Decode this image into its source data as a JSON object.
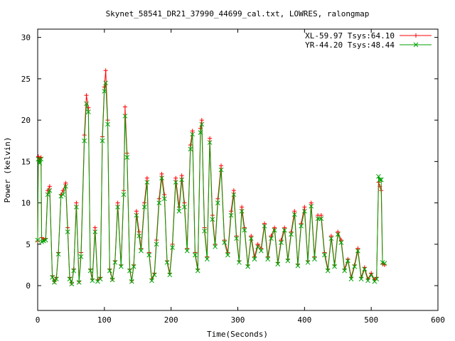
{
  "chart_data": {
    "type": "line",
    "title": "Skynet_58541_DR21_37990_44699_cal.txt, LOWRES, ralongmap",
    "xlabel": "Time(Seconds)",
    "ylabel": "Power (kelvin)",
    "xlim": [
      0,
      600
    ],
    "ylim": [
      -3,
      31
    ],
    "xticks": [
      0,
      100,
      200,
      300,
      400,
      500,
      600
    ],
    "yticks": [
      0,
      5,
      10,
      15,
      20,
      25,
      30
    ],
    "grid": false,
    "legend_position": "top-right",
    "series": [
      {
        "name": "XL-59.97 Tsys:64.10",
        "color": "#ff0000",
        "marker": "plus",
        "points": [
          [
            0,
            5.4
          ],
          [
            1,
            15.6
          ],
          [
            3,
            15.2
          ],
          [
            5,
            15.5
          ],
          [
            6,
            5.8
          ],
          [
            9,
            5.6
          ],
          [
            12,
            5.7
          ],
          [
            15,
            11.5
          ],
          [
            18,
            12.0
          ],
          [
            22,
            1.2
          ],
          [
            25,
            0.5
          ],
          [
            28,
            1.0
          ],
          [
            31,
            4.0
          ],
          [
            35,
            11.0
          ],
          [
            38,
            11.5
          ],
          [
            42,
            12.4
          ],
          [
            45,
            7.0
          ],
          [
            48,
            1.0
          ],
          [
            51,
            0.3
          ],
          [
            54,
            2.0
          ],
          [
            58,
            10.0
          ],
          [
            62,
            0.5
          ],
          [
            65,
            4.0
          ],
          [
            70,
            18.2
          ],
          [
            73,
            23.0
          ],
          [
            76,
            21.5
          ],
          [
            79,
            2.0
          ],
          [
            82,
            0.8
          ],
          [
            86,
            7.0
          ],
          [
            90,
            0.7
          ],
          [
            94,
            1.0
          ],
          [
            97,
            18.0
          ],
          [
            100,
            24.0
          ],
          [
            102,
            26.0
          ],
          [
            105,
            20.0
          ],
          [
            108,
            2.0
          ],
          [
            112,
            0.8
          ],
          [
            116,
            3.0
          ],
          [
            120,
            10.0
          ],
          [
            125,
            2.5
          ],
          [
            129,
            11.5
          ],
          [
            131,
            21.6
          ],
          [
            134,
            16.0
          ],
          [
            138,
            2.0
          ],
          [
            141,
            0.6
          ],
          [
            144,
            2.5
          ],
          [
            148,
            9.0
          ],
          [
            152,
            6.5
          ],
          [
            155,
            4.5
          ],
          [
            160,
            10.0
          ],
          [
            164,
            13.0
          ],
          [
            167,
            4.0
          ],
          [
            171,
            0.8
          ],
          [
            175,
            1.5
          ],
          [
            178,
            5.5
          ],
          [
            182,
            10.5
          ],
          [
            186,
            13.5
          ],
          [
            190,
            11.0
          ],
          [
            194,
            3.0
          ],
          [
            198,
            1.5
          ],
          [
            202,
            5.0
          ],
          [
            207,
            13.0
          ],
          [
            212,
            9.5
          ],
          [
            216,
            13.3
          ],
          [
            220,
            10.0
          ],
          [
            224,
            4.5
          ],
          [
            229,
            17.0
          ],
          [
            232,
            18.7
          ],
          [
            236,
            4.0
          ],
          [
            240,
            2.0
          ],
          [
            244,
            19.0
          ],
          [
            246,
            20.0
          ],
          [
            250,
            7.0
          ],
          [
            254,
            3.5
          ],
          [
            258,
            17.8
          ],
          [
            262,
            8.5
          ],
          [
            266,
            5.0
          ],
          [
            270,
            10.5
          ],
          [
            275,
            14.5
          ],
          [
            280,
            5.5
          ],
          [
            285,
            4.0
          ],
          [
            290,
            9.0
          ],
          [
            294,
            11.5
          ],
          [
            298,
            6.0
          ],
          [
            302,
            3.0
          ],
          [
            306,
            9.5
          ],
          [
            310,
            7.0
          ],
          [
            315,
            2.5
          ],
          [
            320,
            6.0
          ],
          [
            325,
            3.5
          ],
          [
            330,
            5.0
          ],
          [
            335,
            4.5
          ],
          [
            340,
            7.5
          ],
          [
            345,
            3.5
          ],
          [
            350,
            6.0
          ],
          [
            355,
            7.0
          ],
          [
            360,
            2.8
          ],
          [
            365,
            5.5
          ],
          [
            370,
            7.0
          ],
          [
            375,
            3.2
          ],
          [
            380,
            6.5
          ],
          [
            385,
            9.0
          ],
          [
            390,
            2.6
          ],
          [
            395,
            7.5
          ],
          [
            400,
            9.5
          ],
          [
            405,
            3.0
          ],
          [
            410,
            10.0
          ],
          [
            415,
            3.5
          ],
          [
            420,
            8.5
          ],
          [
            425,
            8.5
          ],
          [
            430,
            4.0
          ],
          [
            435,
            2.0
          ],
          [
            440,
            6.0
          ],
          [
            445,
            2.5
          ],
          [
            450,
            6.5
          ],
          [
            455,
            5.5
          ],
          [
            460,
            2.0
          ],
          [
            465,
            3.2
          ],
          [
            470,
            1.0
          ],
          [
            475,
            2.5
          ],
          [
            480,
            4.5
          ],
          [
            485,
            1.0
          ],
          [
            490,
            2.2
          ],
          [
            495,
            0.8
          ],
          [
            500,
            1.5
          ],
          [
            505,
            0.7
          ],
          [
            508,
            1.0
          ],
          [
            511,
            12.5
          ],
          [
            513,
            12.0
          ],
          [
            515,
            11.5
          ],
          [
            517,
            2.6
          ],
          [
            520,
            2.5
          ]
        ]
      },
      {
        "name": "YR-44.20 Tsys:48.44",
        "color": "#00a000",
        "marker": "x",
        "points": [
          [
            0,
            5.5
          ],
          [
            1,
            15.3
          ],
          [
            3,
            14.8
          ],
          [
            5,
            15.3
          ],
          [
            6,
            5.3
          ],
          [
            9,
            5.4
          ],
          [
            12,
            5.5
          ],
          [
            15,
            11.0
          ],
          [
            18,
            11.5
          ],
          [
            22,
            1.0
          ],
          [
            25,
            0.4
          ],
          [
            28,
            0.8
          ],
          [
            31,
            3.8
          ],
          [
            35,
            10.8
          ],
          [
            38,
            11.0
          ],
          [
            42,
            12.0
          ],
          [
            45,
            6.5
          ],
          [
            48,
            0.8
          ],
          [
            51,
            0.2
          ],
          [
            54,
            1.8
          ],
          [
            58,
            9.5
          ],
          [
            62,
            0.4
          ],
          [
            65,
            3.5
          ],
          [
            70,
            17.5
          ],
          [
            73,
            22.0
          ],
          [
            76,
            21.0
          ],
          [
            79,
            1.8
          ],
          [
            82,
            0.6
          ],
          [
            86,
            6.5
          ],
          [
            90,
            0.5
          ],
          [
            94,
            0.8
          ],
          [
            97,
            17.5
          ],
          [
            100,
            23.5
          ],
          [
            102,
            24.5
          ],
          [
            105,
            19.5
          ],
          [
            108,
            1.8
          ],
          [
            112,
            0.7
          ],
          [
            116,
            2.8
          ],
          [
            120,
            9.5
          ],
          [
            125,
            2.3
          ],
          [
            129,
            11.0
          ],
          [
            131,
            20.5
          ],
          [
            134,
            15.5
          ],
          [
            138,
            1.8
          ],
          [
            141,
            0.5
          ],
          [
            144,
            2.3
          ],
          [
            148,
            8.5
          ],
          [
            152,
            6.0
          ],
          [
            155,
            4.2
          ],
          [
            160,
            9.5
          ],
          [
            164,
            12.5
          ],
          [
            167,
            3.7
          ],
          [
            171,
            0.6
          ],
          [
            175,
            1.3
          ],
          [
            178,
            5.0
          ],
          [
            182,
            10.0
          ],
          [
            186,
            13.0
          ],
          [
            190,
            10.5
          ],
          [
            194,
            2.8
          ],
          [
            198,
            1.3
          ],
          [
            202,
            4.6
          ],
          [
            207,
            12.5
          ],
          [
            212,
            9.0
          ],
          [
            216,
            12.8
          ],
          [
            220,
            9.5
          ],
          [
            224,
            4.2
          ],
          [
            229,
            16.5
          ],
          [
            232,
            18.3
          ],
          [
            236,
            3.7
          ],
          [
            240,
            1.8
          ],
          [
            244,
            18.5
          ],
          [
            246,
            19.5
          ],
          [
            250,
            6.6
          ],
          [
            254,
            3.2
          ],
          [
            258,
            17.3
          ],
          [
            262,
            8.0
          ],
          [
            266,
            4.7
          ],
          [
            270,
            10.0
          ],
          [
            275,
            14.0
          ],
          [
            280,
            5.2
          ],
          [
            285,
            3.7
          ],
          [
            290,
            8.5
          ],
          [
            294,
            11.0
          ],
          [
            298,
            5.7
          ],
          [
            302,
            2.8
          ],
          [
            306,
            9.0
          ],
          [
            310,
            6.7
          ],
          [
            315,
            2.3
          ],
          [
            320,
            5.7
          ],
          [
            325,
            3.2
          ],
          [
            330,
            4.7
          ],
          [
            335,
            4.2
          ],
          [
            340,
            7.2
          ],
          [
            345,
            3.2
          ],
          [
            350,
            5.7
          ],
          [
            355,
            6.7
          ],
          [
            360,
            2.6
          ],
          [
            365,
            5.2
          ],
          [
            370,
            6.7
          ],
          [
            375,
            3.0
          ],
          [
            380,
            6.2
          ],
          [
            385,
            8.6
          ],
          [
            390,
            2.4
          ],
          [
            395,
            7.2
          ],
          [
            400,
            9.0
          ],
          [
            405,
            2.8
          ],
          [
            410,
            9.6
          ],
          [
            415,
            3.2
          ],
          [
            420,
            8.1
          ],
          [
            425,
            8.1
          ],
          [
            430,
            3.7
          ],
          [
            435,
            1.8
          ],
          [
            440,
            5.7
          ],
          [
            445,
            2.3
          ],
          [
            450,
            6.2
          ],
          [
            455,
            5.2
          ],
          [
            460,
            1.8
          ],
          [
            465,
            3.0
          ],
          [
            470,
            0.8
          ],
          [
            475,
            2.3
          ],
          [
            480,
            4.2
          ],
          [
            485,
            0.8
          ],
          [
            490,
            2.0
          ],
          [
            495,
            0.6
          ],
          [
            500,
            1.3
          ],
          [
            505,
            0.5
          ],
          [
            508,
            0.8
          ],
          [
            511,
            13.2
          ],
          [
            513,
            12.8
          ],
          [
            515,
            12.8
          ],
          [
            517,
            2.8
          ],
          [
            520,
            2.7
          ]
        ]
      }
    ]
  }
}
